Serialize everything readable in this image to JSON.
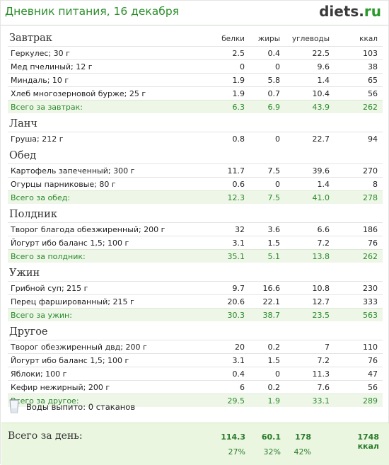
{
  "title": "Дневник питания, 16 декабря",
  "logo": {
    "name": "diets",
    "dot": ".",
    "tld": "ru"
  },
  "columns": [
    "белки",
    "жиры",
    "углеводы",
    "ккал"
  ],
  "sections": [
    {
      "title": "Завтрак",
      "items": [
        {
          "name": "Геркулес; 30 г",
          "p": "2.5",
          "f": "0.4",
          "c": "22.5",
          "k": "103"
        },
        {
          "name": "Мед пчелиный; 12 г",
          "p": "0",
          "f": "0",
          "c": "9.6",
          "k": "38"
        },
        {
          "name": "Миндаль; 10 г",
          "p": "1.9",
          "f": "5.8",
          "c": "1.4",
          "k": "65"
        },
        {
          "name": "Хлеб многозерновой бурже; 25 г",
          "p": "1.9",
          "f": "0.7",
          "c": "10.4",
          "k": "56"
        }
      ],
      "total": {
        "label": "Всего за завтрак:",
        "p": "6.3",
        "f": "6.9",
        "c": "43.9",
        "k": "262"
      }
    },
    {
      "title": "Ланч",
      "items": [
        {
          "name": "Груша; 212 г",
          "p": "0.8",
          "f": "0",
          "c": "22.7",
          "k": "94"
        }
      ],
      "total": null
    },
    {
      "title": "Обед",
      "items": [
        {
          "name": "Картофель запеченный; 300 г",
          "p": "11.7",
          "f": "7.5",
          "c": "39.6",
          "k": "270"
        },
        {
          "name": "Огурцы парниковые; 80 г",
          "p": "0.6",
          "f": "0",
          "c": "1.4",
          "k": "8"
        }
      ],
      "total": {
        "label": "Всего за обед:",
        "p": "12.3",
        "f": "7.5",
        "c": "41.0",
        "k": "278"
      }
    },
    {
      "title": "Полдник",
      "items": [
        {
          "name": "Творог благода обезжиренный; 200 г",
          "p": "32",
          "f": "3.6",
          "c": "6.6",
          "k": "186"
        },
        {
          "name": "Йогурт ибо баланс 1,5; 100 г",
          "p": "3.1",
          "f": "1.5",
          "c": "7.2",
          "k": "76"
        }
      ],
      "total": {
        "label": "Всего за полдник:",
        "p": "35.1",
        "f": "5.1",
        "c": "13.8",
        "k": "262"
      }
    },
    {
      "title": "Ужин",
      "items": [
        {
          "name": "Грибной суп; 215 г",
          "p": "9.7",
          "f": "16.6",
          "c": "10.8",
          "k": "230"
        },
        {
          "name": "Перец фаршированный; 215 г",
          "p": "20.6",
          "f": "22.1",
          "c": "12.7",
          "k": "333"
        }
      ],
      "total": {
        "label": "Всего за ужин:",
        "p": "30.3",
        "f": "38.7",
        "c": "23.5",
        "k": "563"
      }
    },
    {
      "title": "Другое",
      "items": [
        {
          "name": "Творог обезжиренный двд; 200 г",
          "p": "20",
          "f": "0.2",
          "c": "7",
          "k": "110"
        },
        {
          "name": "Йогурт ибо баланс 1,5; 100 г",
          "p": "3.1",
          "f": "1.5",
          "c": "7.2",
          "k": "76"
        },
        {
          "name": "Яблоки; 100 г",
          "p": "0.4",
          "f": "0",
          "c": "11.3",
          "k": "47"
        },
        {
          "name": "Кефир нежирный; 200 г",
          "p": "6",
          "f": "0.2",
          "c": "7.6",
          "k": "56"
        }
      ],
      "total": {
        "label": "Всего за другое:",
        "p": "29.5",
        "f": "1.9",
        "c": "33.1",
        "k": "289"
      }
    }
  ],
  "water": {
    "label": "Воды выпито:",
    "value": "0 стаканов",
    "icon": "glass-icon"
  },
  "day": {
    "label": "Всего за день:",
    "p": "114.3",
    "f": "60.1",
    "c": "178",
    "k": "1748 ккал",
    "p_pct": "27%",
    "f_pct": "32%",
    "c_pct": "42%"
  },
  "colors": {
    "accent": "#2a8f2a",
    "total_bg": "#eef6e8",
    "day_bg": "#eaf6e0"
  }
}
